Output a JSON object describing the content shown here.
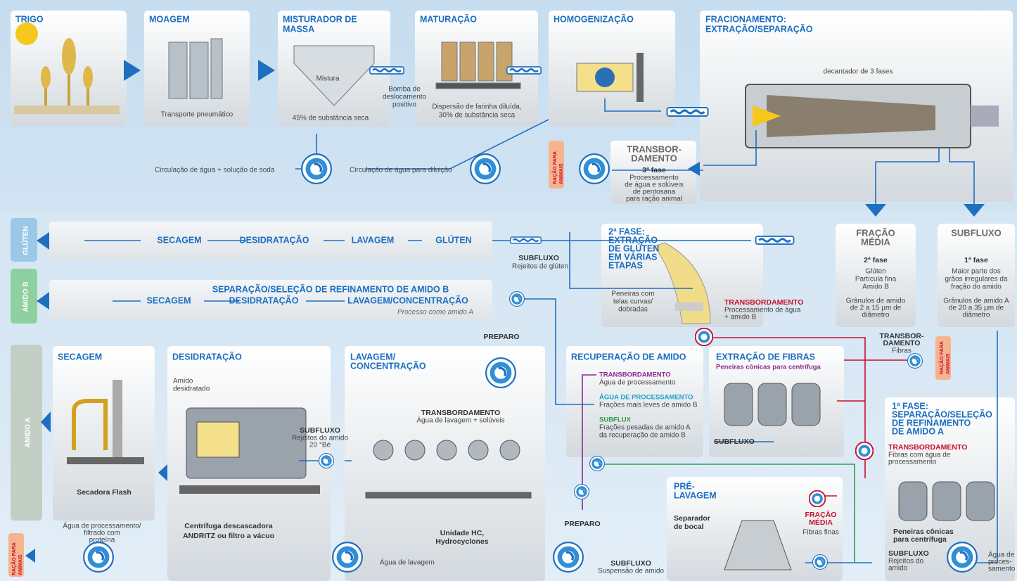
{
  "stages": {
    "trigo": {
      "title": "TRIGO"
    },
    "moagem": {
      "title": "MOAGEM",
      "note": "Transporte pneumático"
    },
    "misturador": {
      "title": [
        "MISTURADOR DE",
        "MASSA"
      ],
      "inner": "Mistura",
      "note": "45% de substância seca"
    },
    "maturacao": {
      "title": "MATURAÇÃO",
      "note": [
        "Dispersão de farinha diluída,",
        "30% de substância seca"
      ]
    },
    "homogenizacao": {
      "title": "HOMOGENIZAÇÃO"
    },
    "fracionamento": {
      "title": [
        "FRACIONAMENTO:",
        "EXTRAÇÃO/SEPARAÇÃO"
      ],
      "note": "decantador de 3 fases"
    }
  },
  "pump_note": [
    "Bomba de",
    "deslocamento",
    "positivo"
  ],
  "circulation": {
    "soda": "Circulação de água + solução de soda",
    "dilution": "Circulação de água para diluição"
  },
  "third_phase": {
    "feed": [
      "RAÇÃO PARA",
      "ANIMAIS"
    ],
    "title": [
      "TRANSBOR-",
      "DAMENTO"
    ],
    "phase": "3ª fase",
    "desc": [
      "Processamento",
      "de água e solúveis",
      "de pentosana",
      "para ração animal"
    ]
  },
  "gluten_line": {
    "side": "GLÚTEN",
    "steps": [
      "SECAGEM",
      "DESIDRATAÇÃO",
      "LAVAGEM",
      "GLÚTEN"
    ],
    "sub_title": "SUBFLUXO",
    "sub_desc": "Rejeitos de glúten"
  },
  "second_phase": {
    "title": [
      "2ª FASE:",
      "EXTRAÇÃO",
      "DE GLÚTEN",
      "EM VÁRIAS",
      "ETAPAS"
    ],
    "screens": [
      "Peneiras com",
      "telas curvas/",
      "dobradas"
    ],
    "overflow_title": "TRANSBORDAMENTO",
    "overflow_desc": [
      "Processamento de água",
      "+ amido B"
    ]
  },
  "middle_fraction": {
    "title": [
      "FRAÇÃO",
      "MÉDIA"
    ],
    "phase": "2ª fase",
    "desc": [
      "Glúten",
      "Partícula fina",
      "Amido B"
    ],
    "size": [
      "Grânulos de amido",
      "de 2 a 15 µm de",
      "diâmetro"
    ]
  },
  "underflow": {
    "title": "SUBFLUXO",
    "phase": "1ª fase",
    "desc": [
      "Maior parte dos",
      "grãos irregulares da",
      "fração do amido"
    ],
    "size": [
      "Grânulos de amido A",
      "de 20 a 35 µm de",
      "diâmetro"
    ]
  },
  "starch_b_line": {
    "side": "AMIDO B",
    "row1": "SEPARAÇÃO/SELEÇÃO DE REFINAMENTO DE AMIDO B",
    "steps": [
      "SECAGEM",
      "DESIDRATAÇÃO",
      "LAVAGEM/CONCENTRAÇÃO"
    ],
    "note": "Processo como amido A"
  },
  "starch_a": {
    "side": "AMIDO A",
    "drying": {
      "title": "SECAGEM",
      "label": "Secadora Flash"
    },
    "dewatering": {
      "title": "DESIDRATAÇÃO",
      "note": [
        "Amido",
        "desidratado"
      ],
      "label": [
        "Centrífuga descascadora",
        "ANDRITZ ou filtro a vácuo"
      ]
    },
    "rejects": {
      "title": "SUBFLUXO",
      "desc": [
        "Rejeitos do amido",
        "20 °Bé"
      ]
    },
    "washing": {
      "title": [
        "LAVAGEM/",
        "CONCENTRAÇÃO"
      ],
      "overflow_title": "TRANSBORDAMENTO",
      "overflow_desc": "Água de lavagem + solúveis",
      "label": [
        "Unidade HC,",
        "Hydrocyclones"
      ],
      "water": "Água de lavagem"
    },
    "prep_top": "PREPARO",
    "process_water": [
      "Água de processamento/",
      "filtrado com",
      "proteína"
    ],
    "feed": [
      "RAÇÃO PARA",
      "ANIMAIS"
    ]
  },
  "recovery": {
    "title": "RECUPERAÇÃO DE AMIDO",
    "items": [
      {
        "title": "TRANSBORDAMENTO",
        "desc": "Água de processamento"
      },
      {
        "title": "ÁGUA DE PROCESSAMENTO",
        "desc": "Frações mais leves de amido B"
      },
      {
        "title": "SUBFLUX",
        "desc": [
          "Frações pesadas de amido A",
          "da recuperação de amido B"
        ]
      }
    ],
    "prep": "PREPARO"
  },
  "fibers": {
    "title": "EXTRAÇÃO DE FIBRAS",
    "desc": "Peneiras cônicas para centrífuga",
    "under": "SUBFLUXO",
    "overflow_title": [
      "TRANSBOR-",
      "DAMENTO"
    ],
    "overflow_desc": "Fibras",
    "feed": [
      "RAÇÃO PARA",
      "ANIMAIS"
    ]
  },
  "prewash": {
    "title": [
      "PRÉ-",
      "LAVAGEM"
    ],
    "label": [
      "Separador",
      "de bocal"
    ],
    "mid_title": [
      "FRAÇÃO",
      "MÉDIA"
    ],
    "mid_desc": "Fibras finas",
    "under_title": "SUBFLUXO",
    "under_desc": "Suspensão de amido"
  },
  "first_phase": {
    "title": [
      "1ª FASE:",
      "SEPARAÇÃO/SELEÇÃO",
      "DE REFINAMENTO",
      "DE AMIDO A"
    ],
    "overflow_title": "TRANSBORDAMENTO",
    "overflow_desc": [
      "Fibras com água de",
      "processamento"
    ],
    "label": [
      "Peneiras cônicas",
      "para centrífuga"
    ],
    "under_title": "SUBFLUXO",
    "under_desc": [
      "Rejeitos do",
      "amido"
    ],
    "water": [
      "Água de",
      "proces-",
      "samento"
    ]
  }
}
